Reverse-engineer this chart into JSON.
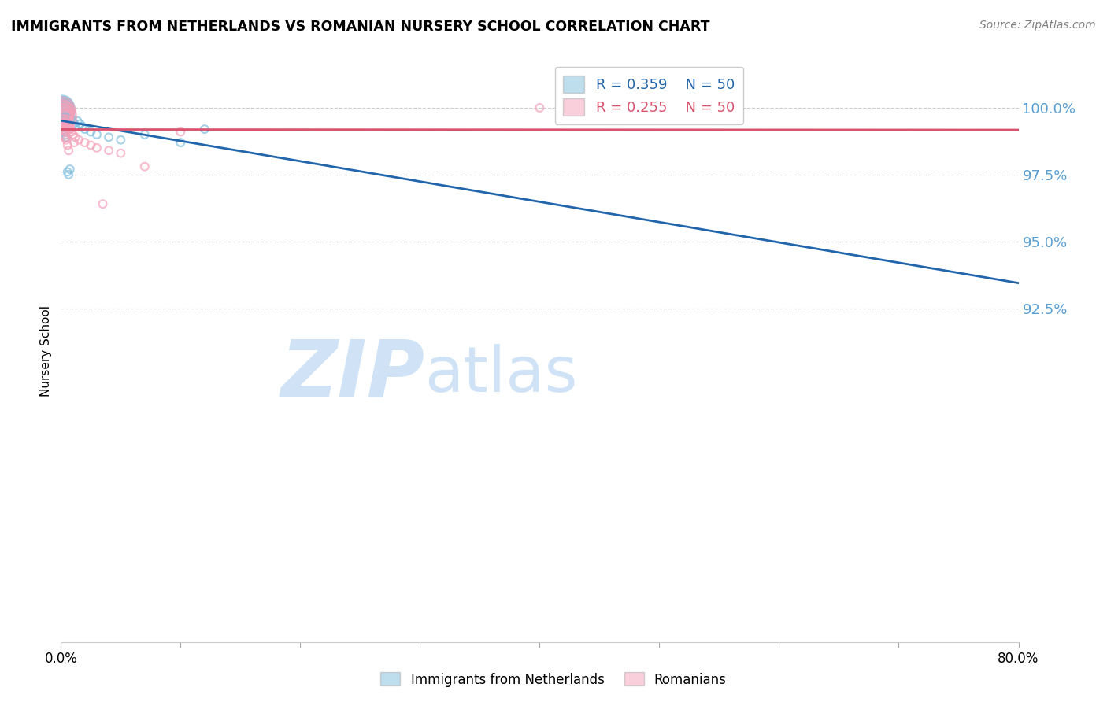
{
  "title": "IMMIGRANTS FROM NETHERLANDS VS ROMANIAN NURSERY SCHOOL CORRELATION CHART",
  "source": "Source: ZipAtlas.com",
  "ylabel": "Nursery School",
  "xlim": [
    0.0,
    80.0
  ],
  "ylim": [
    80.0,
    101.8
  ],
  "ytick_positions": [
    92.5,
    95.0,
    97.5,
    100.0
  ],
  "ytick_labels": [
    "92.5%",
    "95.0%",
    "97.5%",
    "100.0%"
  ],
  "xtick_positions": [
    0.0,
    10.0,
    20.0,
    30.0,
    40.0,
    50.0,
    60.0,
    70.0,
    80.0
  ],
  "xtick_labels": [
    "0.0%",
    "",
    "",
    "",
    "",
    "",
    "",
    "",
    "80.0%"
  ],
  "r_blue": "0.359",
  "r_pink": "0.255",
  "n_blue": "50",
  "n_pink": "50",
  "blue_color": "#7fbfdf",
  "pink_color": "#f4a0b8",
  "trendline_blue": "#2166ac",
  "trendline_pink": "#d9536e",
  "watermark_zip": "ZIP",
  "watermark_atlas": "atlas",
  "watermark_color": "#c8dff5",
  "legend_blue": "Immigrants from Netherlands",
  "legend_pink": "Romanians",
  "grid_color": "#cccccc",
  "blue_x": [
    0.05,
    0.08,
    0.1,
    0.12,
    0.15,
    0.18,
    0.2,
    0.22,
    0.25,
    0.28,
    0.3,
    0.32,
    0.35,
    0.38,
    0.4,
    0.42,
    0.45,
    0.48,
    0.5,
    0.55,
    0.6,
    0.65,
    0.7,
    0.75,
    0.8,
    0.9,
    1.0,
    1.1,
    1.2,
    1.4,
    1.6,
    1.8,
    2.0,
    2.5,
    3.0,
    4.0,
    5.0,
    7.0,
    10.0,
    12.0,
    0.15,
    0.2,
    0.25,
    0.3,
    0.35,
    0.45,
    0.55,
    0.65,
    0.75,
    1.5
  ],
  "blue_y": [
    99.9,
    100.0,
    99.8,
    100.0,
    99.9,
    100.0,
    99.8,
    100.0,
    99.9,
    100.0,
    99.8,
    100.0,
    99.7,
    99.9,
    99.8,
    100.0,
    99.7,
    99.9,
    99.6,
    99.8,
    99.7,
    99.6,
    99.8,
    99.5,
    99.7,
    99.6,
    99.5,
    99.4,
    99.3,
    99.5,
    99.4,
    99.3,
    99.2,
    99.1,
    99.0,
    98.9,
    98.8,
    99.0,
    98.7,
    99.2,
    99.5,
    99.3,
    99.2,
    99.1,
    99.0,
    98.9,
    97.6,
    97.5,
    97.7,
    99.3
  ],
  "blue_sizes": [
    120,
    100,
    90,
    80,
    70,
    60,
    55,
    50,
    45,
    40,
    38,
    35,
    30,
    28,
    25,
    22,
    20,
    18,
    16,
    15,
    14,
    13,
    12,
    11,
    10,
    10,
    10,
    10,
    10,
    10,
    10,
    10,
    10,
    10,
    10,
    10,
    10,
    10,
    10,
    10,
    20,
    18,
    15,
    14,
    12,
    10,
    10,
    10,
    10,
    10
  ],
  "pink_x": [
    0.03,
    0.05,
    0.08,
    0.1,
    0.12,
    0.15,
    0.18,
    0.2,
    0.22,
    0.25,
    0.28,
    0.3,
    0.32,
    0.35,
    0.38,
    0.4,
    0.42,
    0.45,
    0.5,
    0.55,
    0.6,
    0.65,
    0.7,
    0.75,
    0.8,
    0.9,
    1.0,
    1.2,
    1.5,
    2.0,
    2.5,
    3.0,
    4.0,
    5.0,
    7.0,
    0.1,
    0.15,
    0.2,
    0.25,
    0.3,
    0.35,
    0.4,
    0.45,
    0.55,
    0.65,
    0.75,
    1.1,
    3.5,
    10.0,
    40.0
  ],
  "pink_y": [
    99.7,
    99.9,
    99.8,
    99.7,
    99.9,
    99.8,
    99.7,
    99.8,
    99.6,
    99.7,
    99.8,
    99.6,
    99.7,
    99.5,
    99.6,
    99.7,
    99.4,
    99.5,
    99.4,
    99.5,
    99.3,
    99.4,
    99.2,
    99.3,
    99.2,
    99.1,
    99.0,
    98.9,
    98.8,
    98.7,
    98.6,
    98.5,
    98.4,
    98.3,
    97.8,
    99.5,
    99.3,
    99.2,
    99.4,
    99.0,
    98.9,
    99.1,
    98.8,
    98.6,
    98.4,
    99.2,
    98.7,
    96.4,
    99.1,
    100.0
  ],
  "pink_sizes": [
    150,
    120,
    100,
    90,
    80,
    70,
    60,
    55,
    50,
    45,
    40,
    38,
    35,
    30,
    28,
    25,
    22,
    20,
    18,
    16,
    14,
    13,
    12,
    11,
    10,
    10,
    10,
    10,
    10,
    10,
    10,
    10,
    10,
    10,
    10,
    25,
    20,
    18,
    15,
    14,
    12,
    10,
    10,
    10,
    10,
    10,
    10,
    10,
    10,
    10
  ]
}
